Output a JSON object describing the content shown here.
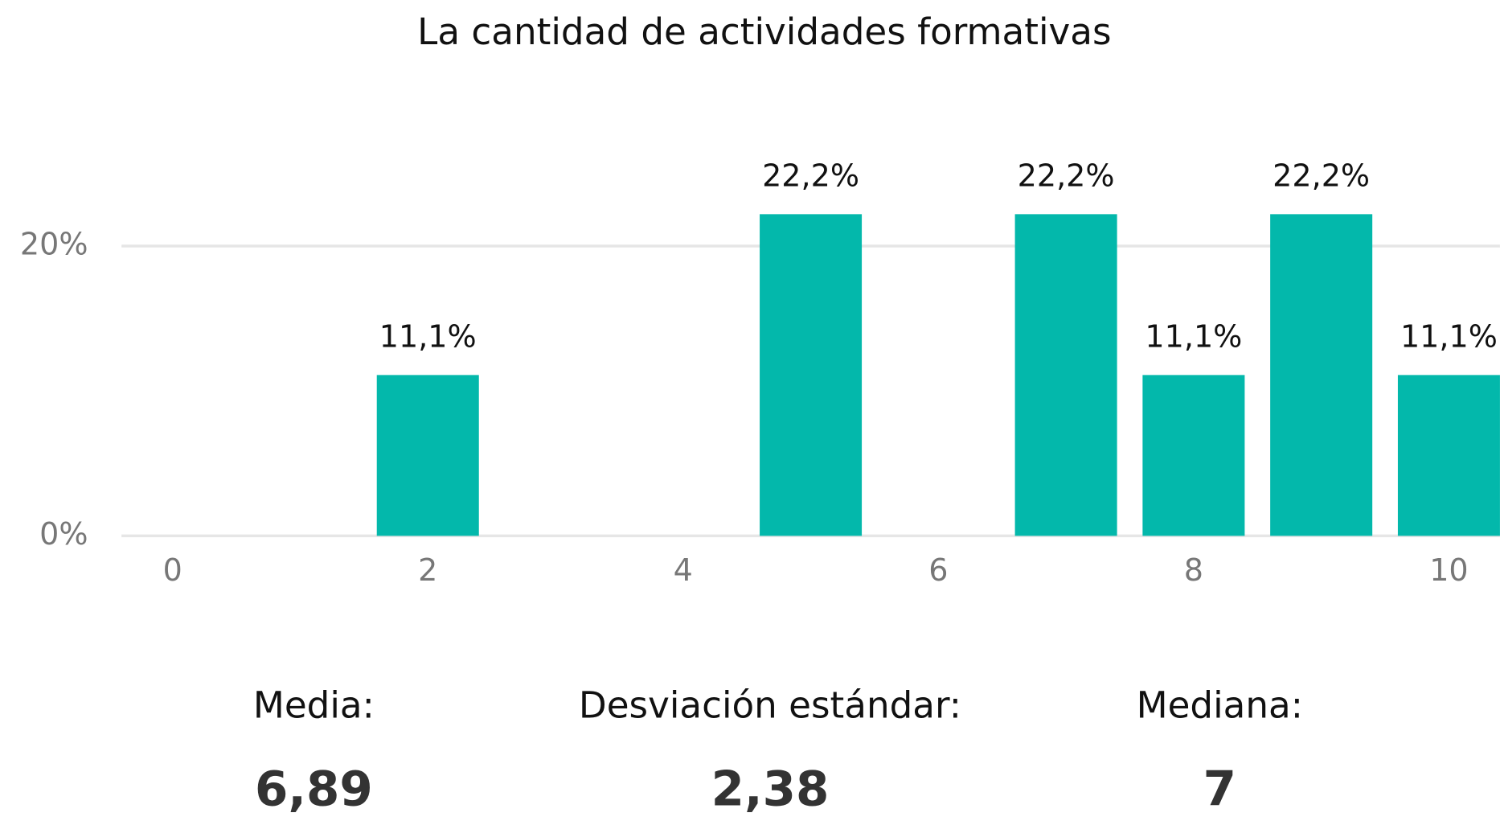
{
  "chart_data": {
    "type": "bar",
    "title": "La cantidad de actividades formativas",
    "x": [
      2,
      5,
      7,
      8,
      9,
      10
    ],
    "values": [
      11.1,
      22.2,
      22.2,
      11.1,
      22.2,
      11.1
    ],
    "value_labels": [
      "11,1%",
      "22,2%",
      "22,2%",
      "11,1%",
      "22,2%",
      "11,1%"
    ],
    "color": "#03b8ab",
    "xlim": [
      -0.4,
      10.4
    ],
    "xticks": [
      0,
      2,
      4,
      6,
      8,
      10
    ],
    "ylim": [
      0,
      28
    ],
    "yticks": [
      {
        "value": 0,
        "label": "0%"
      },
      {
        "value": 20,
        "label": "20%"
      }
    ],
    "grid": true
  },
  "stats": [
    {
      "label": "Media:",
      "value": "6,89"
    },
    {
      "label": "Desviación estándar:",
      "value": "2,38"
    },
    {
      "label": "Mediana:",
      "value": "7"
    }
  ]
}
